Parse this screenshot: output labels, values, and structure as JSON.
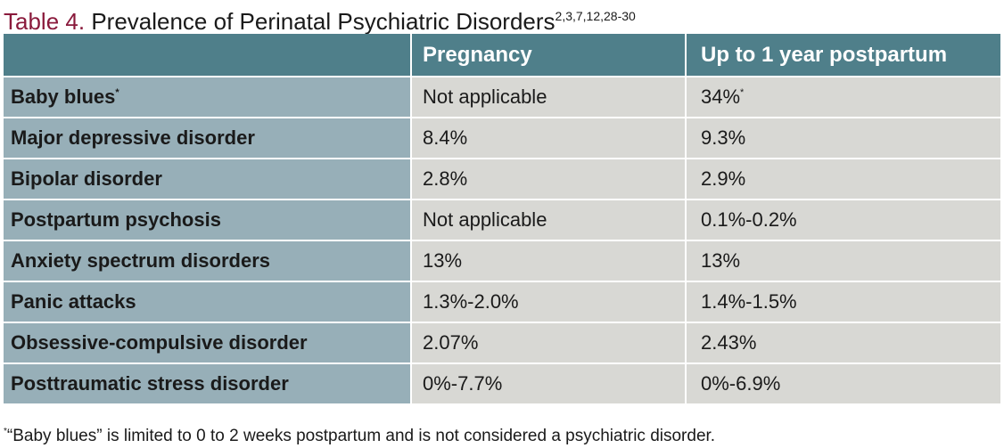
{
  "title": {
    "label": "Table 4.",
    "text": "Prevalence of Perinatal Psychiatric Disorders",
    "refs": "2,3,7,12,28-30"
  },
  "colors": {
    "title_label": "#8a1a3c",
    "header_bg": "#4f7f8a",
    "row_header_bg": "#97afb8",
    "cell_bg": "#d8d8d4"
  },
  "table": {
    "headers": [
      "",
      "Pregnancy",
      "Up to 1 year postpartum"
    ],
    "rows": [
      {
        "disorder": "Baby blues",
        "disorder_mark": "*",
        "pregnancy": "Not applicable",
        "pregnancy_mark": "",
        "postpartum": "34%",
        "postpartum_mark": "*"
      },
      {
        "disorder": "Major depressive disorder",
        "disorder_mark": "",
        "pregnancy": "8.4%",
        "pregnancy_mark": "",
        "postpartum": "9.3%",
        "postpartum_mark": ""
      },
      {
        "disorder": "Bipolar disorder",
        "disorder_mark": "",
        "pregnancy": "2.8%",
        "pregnancy_mark": "",
        "postpartum": "2.9%",
        "postpartum_mark": ""
      },
      {
        "disorder": "Postpartum psychosis",
        "disorder_mark": "",
        "pregnancy": "Not applicable",
        "pregnancy_mark": "",
        "postpartum": "0.1%-0.2%",
        "postpartum_mark": ""
      },
      {
        "disorder": "Anxiety spectrum disorders",
        "disorder_mark": "",
        "pregnancy": "13%",
        "pregnancy_mark": "",
        "postpartum": "13%",
        "postpartum_mark": ""
      },
      {
        "disorder": "Panic attacks",
        "disorder_mark": "",
        "pregnancy": "1.3%-2.0%",
        "pregnancy_mark": "",
        "postpartum": "1.4%-1.5%",
        "postpartum_mark": ""
      },
      {
        "disorder": "Obsessive-compulsive disorder",
        "disorder_mark": "",
        "pregnancy": "2.07%",
        "pregnancy_mark": "",
        "postpartum": "2.43%",
        "postpartum_mark": ""
      },
      {
        "disorder": "Posttraumatic stress disorder",
        "disorder_mark": "",
        "pregnancy": "0%-7.7%",
        "pregnancy_mark": "",
        "postpartum": "0%-6.9%",
        "postpartum_mark": ""
      }
    ]
  },
  "footnote": {
    "mark": "*",
    "text": "“Baby blues” is limited to 0 to 2 weeks postpartum and is not considered a psychiatric disorder."
  }
}
